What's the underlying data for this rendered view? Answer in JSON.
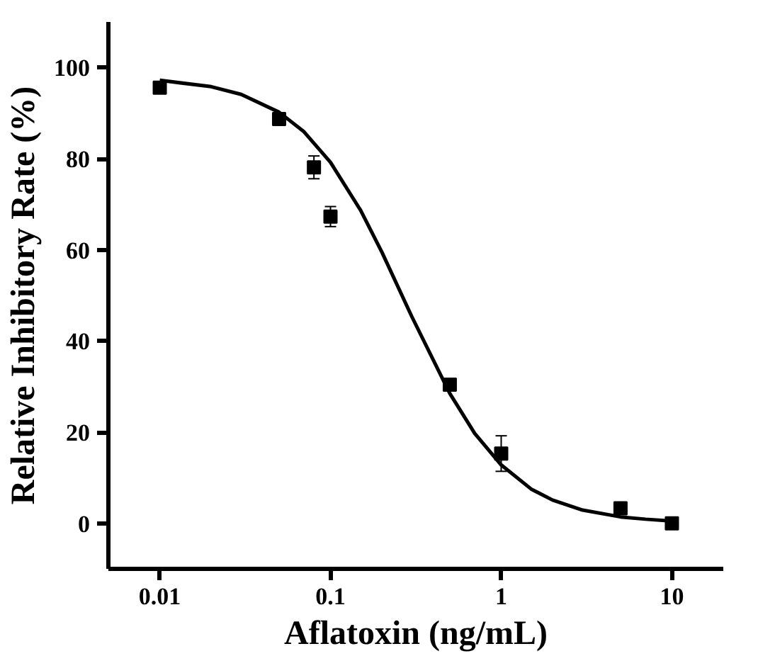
{
  "chart_data": {
    "type": "scatter",
    "xlabel": "Aflatoxin (ng/mL)",
    "ylabel": "Relative Inhibitory Rate (%)",
    "log": "x",
    "xlim": [
      0.005,
      20
    ],
    "xticks": [
      0.01,
      0.1,
      1,
      10
    ],
    "ylim": [
      -10,
      110
    ],
    "yticks": [
      0,
      20,
      40,
      60,
      80,
      100
    ],
    "grid": false,
    "series": [
      {
        "marker": "square",
        "color": "#000000",
        "x": [
          0.01,
          0.05,
          0.08,
          0.1,
          0.5,
          1,
          5,
          10
        ],
        "values": [
          95.6,
          88.7,
          78.1,
          67.3,
          30.4,
          15.3,
          3.3,
          0
        ],
        "errors": [
          null,
          null,
          2.5,
          2.2,
          null,
          3.9,
          null,
          null
        ]
      },
      {
        "type": "line",
        "line_style": "solid",
        "color": "#000000",
        "x": [
          0.01,
          0.02,
          0.03,
          0.05,
          0.07,
          0.1,
          0.15,
          0.2,
          0.3,
          0.5,
          0.7,
          1,
          1.5,
          2,
          3,
          5,
          7,
          10
        ],
        "values": [
          97.2,
          95.8,
          94.1,
          90.2,
          85.9,
          79.2,
          68.7,
          59.5,
          45.3,
          28.5,
          19.7,
          12.8,
          7.5,
          5.1,
          2.9,
          1.4,
          0.9,
          0.5
        ]
      }
    ]
  }
}
